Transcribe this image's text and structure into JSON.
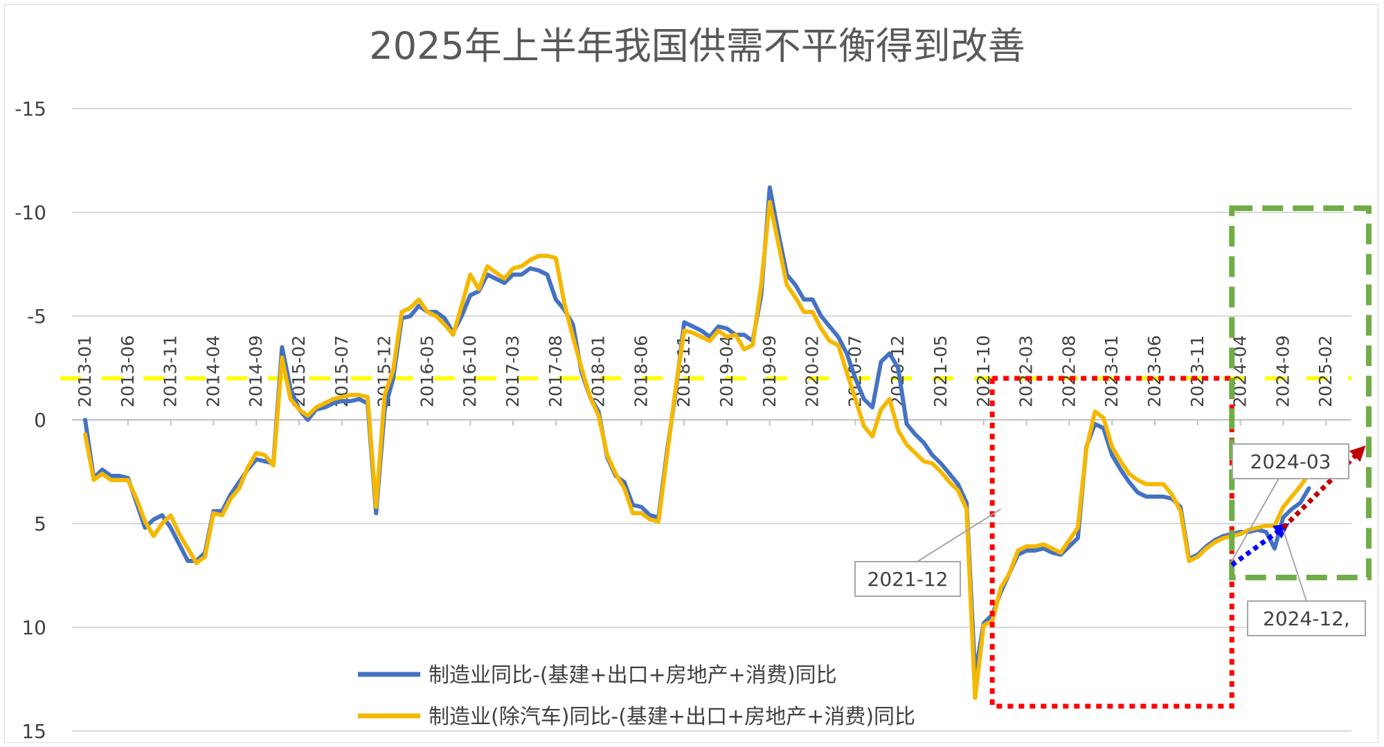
{
  "chart_data": {
    "type": "line",
    "title": "2025年上半年我国供需不平衡得到改善",
    "y_axis": {
      "reversed": true,
      "min": -15,
      "max": 15,
      "ticks": [
        "-15",
        "-10",
        "-5",
        "0",
        "5",
        "10",
        "15"
      ]
    },
    "x_tick_labels": [
      "2013-01",
      "2013-06",
      "2013-11",
      "2014-04",
      "2014-09",
      "2015-02",
      "2015-07",
      "2015-12",
      "2016-05",
      "2016-10",
      "2017-03",
      "2017-08",
      "2018-01",
      "2018-06",
      "2018-11",
      "2019-04",
      "2019-09",
      "2020-02",
      "2020-07",
      "2020-12",
      "2021-05",
      "2021-10",
      "2022-03",
      "2022-08",
      "2023-01",
      "2023-06",
      "2023-11",
      "2024-04",
      "2024-09",
      "2025-02"
    ],
    "series": [
      {
        "name": "制造业同比-(基建+出口+房地产+消费)同比",
        "color": "#4472C4",
        "points": [
          [
            1,
            0
          ],
          [
            2,
            2.8
          ],
          [
            3,
            2.4
          ],
          [
            4,
            2.7
          ],
          [
            5,
            2.7
          ],
          [
            6,
            2.8
          ],
          [
            7,
            4
          ],
          [
            8,
            5.2
          ],
          [
            9,
            4.8
          ],
          [
            10,
            4.6
          ],
          [
            11,
            5.2
          ],
          [
            12,
            6
          ],
          [
            13,
            6.8
          ],
          [
            14,
            6.8
          ],
          [
            15,
            6.4
          ],
          [
            16,
            4.4
          ],
          [
            17,
            4.4
          ],
          [
            18,
            3.6
          ],
          [
            19,
            3
          ],
          [
            20,
            2.4
          ],
          [
            21,
            1.9
          ],
          [
            22,
            2
          ],
          [
            23,
            2.1
          ],
          [
            24,
            -3.5
          ],
          [
            25,
            -1.5
          ],
          [
            26,
            -0.5
          ],
          [
            27,
            0
          ],
          [
            28,
            -0.5
          ],
          [
            29,
            -0.6
          ],
          [
            30,
            -0.8
          ],
          [
            31,
            -0.9
          ],
          [
            32,
            -0.9
          ],
          [
            33,
            -1
          ],
          [
            34,
            -0.8
          ],
          [
            35,
            4.5
          ],
          [
            36,
            -0.5
          ],
          [
            37,
            -2
          ],
          [
            38,
            -4.9
          ],
          [
            39,
            -5
          ],
          [
            40,
            -5.5
          ],
          [
            41,
            -5.2
          ],
          [
            42,
            -5.2
          ],
          [
            43,
            -4.9
          ],
          [
            44,
            -4.2
          ],
          [
            45,
            -5
          ],
          [
            46,
            -6
          ],
          [
            47,
            -6.2
          ],
          [
            48,
            -7
          ],
          [
            49,
            -6.8
          ],
          [
            50,
            -6.6
          ],
          [
            51,
            -7
          ],
          [
            52,
            -7
          ],
          [
            53,
            -7.3
          ],
          [
            54,
            -7.2
          ],
          [
            55,
            -7
          ],
          [
            56,
            -5.8
          ],
          [
            57,
            -5.3
          ],
          [
            58,
            -4.6
          ],
          [
            59,
            -2.3
          ],
          [
            60,
            -1.1
          ],
          [
            61,
            -0.4
          ],
          [
            62,
            1.8
          ],
          [
            63,
            2.7
          ],
          [
            64,
            3
          ],
          [
            65,
            4.1
          ],
          [
            66,
            4.2
          ],
          [
            67,
            4.6
          ],
          [
            68,
            4.7
          ],
          [
            69,
            1.5
          ],
          [
            70,
            -1.3
          ],
          [
            71,
            -4.7
          ],
          [
            72,
            -4.5
          ],
          [
            73,
            -4.3
          ],
          [
            74,
            -4
          ],
          [
            75,
            -4.5
          ],
          [
            76,
            -4.4
          ],
          [
            77,
            -4.1
          ],
          [
            78,
            -4.1
          ],
          [
            79,
            -3.8
          ],
          [
            80,
            -6
          ],
          [
            81,
            -11.2
          ],
          [
            82,
            -9
          ],
          [
            83,
            -7
          ],
          [
            84,
            -6.5
          ],
          [
            85,
            -5.8
          ],
          [
            86,
            -5.8
          ],
          [
            87,
            -5
          ],
          [
            88,
            -4.5
          ],
          [
            89,
            -4
          ],
          [
            90,
            -3.2
          ],
          [
            91,
            -2
          ],
          [
            92,
            -1
          ],
          [
            93,
            -0.6
          ],
          [
            94,
            -2.8
          ],
          [
            95,
            -3.2
          ],
          [
            96,
            -2.5
          ],
          [
            97,
            0.2
          ],
          [
            98,
            0.7
          ],
          [
            99,
            1.1
          ],
          [
            100,
            1.7
          ],
          [
            101,
            2.1
          ],
          [
            102,
            2.6
          ],
          [
            103,
            3.1
          ],
          [
            104,
            4
          ],
          [
            105,
            12.3
          ],
          [
            106,
            9.8
          ],
          [
            107,
            9.4
          ],
          [
            108,
            8.3
          ],
          [
            109,
            7.4
          ],
          [
            110,
            6.5
          ],
          [
            111,
            6.3
          ],
          [
            112,
            6.3
          ],
          [
            113,
            6.2
          ],
          [
            114,
            6.4
          ],
          [
            115,
            6.5
          ],
          [
            116,
            6.1
          ],
          [
            117,
            5.7
          ],
          [
            118,
            1.3
          ],
          [
            119,
            0.2
          ],
          [
            120,
            0.4
          ],
          [
            121,
            1.7
          ],
          [
            122,
            2.4
          ],
          [
            123,
            3
          ],
          [
            124,
            3.5
          ],
          [
            125,
            3.7
          ],
          [
            126,
            3.7
          ],
          [
            127,
            3.7
          ],
          [
            128,
            3.8
          ],
          [
            129,
            4.2
          ],
          [
            130,
            6.7
          ],
          [
            131,
            6.5
          ],
          [
            132,
            6.1
          ],
          [
            133,
            5.8
          ],
          [
            134,
            5.6
          ],
          [
            135,
            5.5
          ],
          [
            136,
            5.4
          ],
          [
            137,
            5.4
          ],
          [
            138,
            5.3
          ],
          [
            139,
            5.4
          ],
          [
            140,
            6.2
          ],
          [
            141,
            4.7
          ],
          [
            142,
            4.3
          ],
          [
            143,
            4
          ],
          [
            144,
            3.3
          ]
        ]
      },
      {
        "name": "制造业(除汽车)同比-(基建+出口+房地产+消费)同比",
        "color": "#F5B800",
        "points": [
          [
            1,
            0.7
          ],
          [
            2,
            2.9
          ],
          [
            3,
            2.6
          ],
          [
            4,
            2.9
          ],
          [
            5,
            2.9
          ],
          [
            6,
            2.9
          ],
          [
            7,
            3.8
          ],
          [
            8,
            4.9
          ],
          [
            9,
            5.6
          ],
          [
            10,
            5
          ],
          [
            11,
            4.6
          ],
          [
            12,
            5.5
          ],
          [
            13,
            6.2
          ],
          [
            14,
            6.9
          ],
          [
            15,
            6.6
          ],
          [
            16,
            4.5
          ],
          [
            17,
            4.6
          ],
          [
            18,
            3.8
          ],
          [
            19,
            3.3
          ],
          [
            20,
            2.3
          ],
          [
            21,
            1.6
          ],
          [
            22,
            1.7
          ],
          [
            23,
            2.2
          ],
          [
            24,
            -3
          ],
          [
            25,
            -1
          ],
          [
            26,
            -0.5
          ],
          [
            27,
            -0.2
          ],
          [
            28,
            -0.6
          ],
          [
            29,
            -0.8
          ],
          [
            30,
            -1
          ],
          [
            31,
            -1.1
          ],
          [
            32,
            -1.2
          ],
          [
            33,
            -1.2
          ],
          [
            34,
            -1.1
          ],
          [
            35,
            4.2
          ],
          [
            36,
            -1.2
          ],
          [
            37,
            -2.4
          ],
          [
            38,
            -5.2
          ],
          [
            39,
            -5.4
          ],
          [
            40,
            -5.8
          ],
          [
            41,
            -5.2
          ],
          [
            42,
            -5
          ],
          [
            43,
            -4.6
          ],
          [
            44,
            -4.1
          ],
          [
            45,
            -5.5
          ],
          [
            46,
            -7
          ],
          [
            47,
            -6.3
          ],
          [
            48,
            -7.4
          ],
          [
            49,
            -7.1
          ],
          [
            50,
            -6.8
          ],
          [
            51,
            -7.3
          ],
          [
            52,
            -7.4
          ],
          [
            53,
            -7.7
          ],
          [
            54,
            -7.9
          ],
          [
            55,
            -7.9
          ],
          [
            56,
            -7.8
          ],
          [
            57,
            -5.6
          ],
          [
            58,
            -4
          ],
          [
            59,
            -2.5
          ],
          [
            60,
            -1.1
          ],
          [
            61,
            -0.2
          ],
          [
            62,
            1.7
          ],
          [
            63,
            2.6
          ],
          [
            64,
            3.3
          ],
          [
            65,
            4.5
          ],
          [
            66,
            4.5
          ],
          [
            67,
            4.8
          ],
          [
            68,
            4.9
          ],
          [
            69,
            1.7
          ],
          [
            70,
            -1.5
          ],
          [
            71,
            -4.3
          ],
          [
            72,
            -4.2
          ],
          [
            73,
            -4
          ],
          [
            74,
            -3.8
          ],
          [
            75,
            -4.3
          ],
          [
            76,
            -4
          ],
          [
            77,
            -4.1
          ],
          [
            78,
            -3.4
          ],
          [
            79,
            -3.6
          ],
          [
            80,
            -6.5
          ],
          [
            81,
            -10.5
          ],
          [
            82,
            -8.5
          ],
          [
            83,
            -6.5
          ],
          [
            84,
            -5.9
          ],
          [
            85,
            -5.2
          ],
          [
            86,
            -5.2
          ],
          [
            87,
            -4.4
          ],
          [
            88,
            -3.8
          ],
          [
            89,
            -3.6
          ],
          [
            90,
            -2.3
          ],
          [
            91,
            -1
          ],
          [
            92,
            0.3
          ],
          [
            93,
            0.8
          ],
          [
            94,
            -0.5
          ],
          [
            95,
            -1
          ],
          [
            96,
            0.5
          ],
          [
            97,
            1.2
          ],
          [
            98,
            1.6
          ],
          [
            99,
            2
          ],
          [
            100,
            2.1
          ],
          [
            101,
            2.5
          ],
          [
            102,
            3
          ],
          [
            103,
            3.4
          ],
          [
            104,
            4.3
          ],
          [
            105,
            13.4
          ],
          [
            106,
            9.9
          ],
          [
            107,
            9.7
          ],
          [
            108,
            8.1
          ],
          [
            109,
            7.4
          ],
          [
            110,
            6.3
          ],
          [
            111,
            6.1
          ],
          [
            112,
            6.1
          ],
          [
            113,
            6
          ],
          [
            114,
            6.2
          ],
          [
            115,
            6.4
          ],
          [
            116,
            5.8
          ],
          [
            117,
            5.2
          ],
          [
            118,
            1.4
          ],
          [
            119,
            -0.4
          ],
          [
            120,
            -0.1
          ],
          [
            121,
            1.3
          ],
          [
            122,
            2.0
          ],
          [
            123,
            2.6
          ],
          [
            124,
            2.9
          ],
          [
            125,
            3.1
          ],
          [
            126,
            3.1
          ],
          [
            127,
            3.1
          ],
          [
            128,
            3.6
          ],
          [
            129,
            4.4
          ],
          [
            130,
            6.8
          ],
          [
            131,
            6.6
          ],
          [
            132,
            6.2
          ],
          [
            133,
            5.9
          ],
          [
            134,
            5.7
          ],
          [
            135,
            5.6
          ],
          [
            136,
            5.5
          ],
          [
            137,
            5.3
          ],
          [
            138,
            5.2
          ],
          [
            139,
            5.1
          ],
          [
            140,
            5.1
          ],
          [
            141,
            4.2
          ],
          [
            142,
            3.7
          ],
          [
            143,
            3.2
          ],
          [
            144,
            2.6
          ]
        ]
      }
    ],
    "reference_line": {
      "value": -2,
      "color": "#FFFF00",
      "style": "dashed"
    },
    "highlight_boxes": [
      {
        "color": "#FF0000",
        "style": "dotted",
        "x_from": 107,
        "x_to": 135,
        "y_from": 13.8,
        "y_to": -2
      },
      {
        "color": "#70AD47",
        "style": "dashed",
        "x_from": 135,
        "x_to": 151,
        "y_from": 7.6,
        "y_to": -10.2
      }
    ],
    "trend_arrows": [
      {
        "color": "#0000FF",
        "from": [
          135,
          7
        ],
        "to": [
          141,
          5.2
        ]
      },
      {
        "color": "#C00000",
        "from": [
          141,
          5.2
        ],
        "to": [
          150,
          1.5
        ]
      }
    ],
    "callouts": [
      {
        "label": "2021-12",
        "x": 108,
        "y": 4.3
      },
      {
        "label": "2024-03",
        "x": 135,
        "y": 6.8
      },
      {
        "label": "2024-12,",
        "x": 141,
        "y": 5.3
      }
    ]
  }
}
